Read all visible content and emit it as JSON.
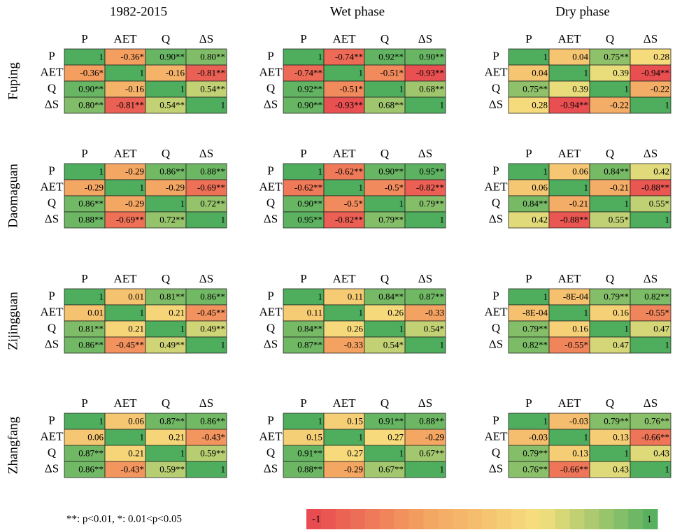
{
  "columns": [
    "1982-2015",
    "Wet phase",
    "Dry phase"
  ],
  "stations": [
    "Fuping",
    "Daomaguan",
    "Zijingguan",
    "Zhangfang"
  ],
  "variables": [
    "P",
    "AET",
    "Q",
    "ΔS"
  ],
  "panels": [
    [
      [
        [
          1,
          {
            "value": -0.36,
            "label": "-0.36*"
          },
          {
            "value": 0.9,
            "label": "0.90**"
          },
          {
            "value": 0.8,
            "label": "0.80**"
          }
        ],
        [
          {
            "value": -0.36,
            "label": "-0.36*"
          },
          1,
          -0.16,
          {
            "value": -0.81,
            "label": "-0.81**"
          }
        ],
        [
          {
            "value": 0.9,
            "label": "0.90**"
          },
          -0.16,
          1,
          {
            "value": 0.54,
            "label": "0.54**"
          }
        ],
        [
          {
            "value": 0.8,
            "label": "0.80**"
          },
          {
            "value": -0.81,
            "label": "-0.81**"
          },
          {
            "value": 0.54,
            "label": "0.54**"
          },
          1
        ]
      ],
      [
        [
          1,
          {
            "value": -0.74,
            "label": "-0.74**"
          },
          {
            "value": 0.92,
            "label": "0.92**"
          },
          {
            "value": 0.9,
            "label": "0.90**"
          }
        ],
        [
          {
            "value": -0.74,
            "label": "-0.74**"
          },
          1,
          {
            "value": -0.51,
            "label": "-0.51*"
          },
          {
            "value": -0.93,
            "label": "-0.93**"
          }
        ],
        [
          {
            "value": 0.92,
            "label": "0.92**"
          },
          {
            "value": -0.51,
            "label": "-0.51*"
          },
          1,
          {
            "value": 0.68,
            "label": "0.68**"
          }
        ],
        [
          {
            "value": 0.9,
            "label": "0.90**"
          },
          {
            "value": -0.93,
            "label": "-0.93**"
          },
          {
            "value": 0.68,
            "label": "0.68**"
          },
          1
        ]
      ],
      [
        [
          1,
          0.04,
          {
            "value": 0.75,
            "label": "0.75**"
          },
          0.28
        ],
        [
          0.04,
          1,
          0.39,
          {
            "value": -0.94,
            "label": "-0.94**"
          }
        ],
        [
          {
            "value": 0.75,
            "label": "0.75**"
          },
          0.39,
          1,
          -0.22
        ],
        [
          0.28,
          {
            "value": -0.94,
            "label": "-0.94**"
          },
          -0.22,
          1
        ]
      ]
    ],
    [
      [
        [
          1,
          -0.29,
          {
            "value": 0.86,
            "label": "0.86**"
          },
          {
            "value": 0.88,
            "label": "0.88**"
          }
        ],
        [
          -0.29,
          1,
          -0.29,
          {
            "value": -0.69,
            "label": "-0.69**"
          }
        ],
        [
          {
            "value": 0.86,
            "label": "0.86**"
          },
          -0.29,
          1,
          {
            "value": 0.72,
            "label": "0.72**"
          }
        ],
        [
          {
            "value": 0.88,
            "label": "0.88**"
          },
          {
            "value": -0.69,
            "label": "-0.69**"
          },
          {
            "value": 0.72,
            "label": "0.72**"
          },
          1
        ]
      ],
      [
        [
          1,
          {
            "value": -0.62,
            "label": "-0.62**"
          },
          {
            "value": 0.9,
            "label": "0.90**"
          },
          {
            "value": 0.95,
            "label": "0.95**"
          }
        ],
        [
          {
            "value": -0.62,
            "label": "-0.62**"
          },
          1,
          {
            "value": -0.5,
            "label": "-0.5*"
          },
          {
            "value": -0.82,
            "label": "-0.82**"
          }
        ],
        [
          {
            "value": 0.9,
            "label": "0.90**"
          },
          {
            "value": -0.5,
            "label": "-0.5*"
          },
          1,
          {
            "value": 0.79,
            "label": "0.79**"
          }
        ],
        [
          {
            "value": 0.95,
            "label": "0.95**"
          },
          {
            "value": -0.82,
            "label": "-0.82**"
          },
          {
            "value": 0.79,
            "label": "0.79**"
          },
          1
        ]
      ],
      [
        [
          1,
          0.06,
          {
            "value": 0.84,
            "label": "0.84**"
          },
          0.42
        ],
        [
          0.06,
          1,
          -0.21,
          {
            "value": -0.88,
            "label": "-0.88**"
          }
        ],
        [
          {
            "value": 0.84,
            "label": "0.84**"
          },
          -0.21,
          1,
          {
            "value": 0.55,
            "label": "0.55*"
          }
        ],
        [
          0.42,
          {
            "value": -0.88,
            "label": "-0.88**"
          },
          {
            "value": 0.55,
            "label": "0.55*"
          },
          1
        ]
      ]
    ],
    [
      [
        [
          1,
          0.01,
          {
            "value": 0.81,
            "label": "0.81**"
          },
          {
            "value": 0.86,
            "label": "0.86**"
          }
        ],
        [
          0.01,
          1,
          0.21,
          {
            "value": -0.45,
            "label": "-0.45**"
          }
        ],
        [
          {
            "value": 0.81,
            "label": "0.81**"
          },
          0.21,
          1,
          {
            "value": 0.49,
            "label": "0.49**"
          }
        ],
        [
          {
            "value": 0.86,
            "label": "0.86**"
          },
          {
            "value": -0.45,
            "label": "-0.45**"
          },
          {
            "value": 0.49,
            "label": "0.49**"
          },
          1
        ]
      ],
      [
        [
          1,
          0.11,
          {
            "value": 0.84,
            "label": "0.84**"
          },
          {
            "value": 0.87,
            "label": "0.87**"
          }
        ],
        [
          0.11,
          1,
          0.26,
          -0.33
        ],
        [
          {
            "value": 0.84,
            "label": "0.84**"
          },
          0.26,
          1,
          {
            "value": 0.54,
            "label": "0.54*"
          }
        ],
        [
          {
            "value": 0.87,
            "label": "0.87**"
          },
          -0.33,
          {
            "value": 0.54,
            "label": "0.54*"
          },
          1
        ]
      ],
      [
        [
          1,
          {
            "value": -0.0008,
            "label": "-8E-04"
          },
          {
            "value": 0.79,
            "label": "0.79**"
          },
          {
            "value": 0.82,
            "label": "0.82**"
          }
        ],
        [
          {
            "value": -0.0008,
            "label": "-8E-04"
          },
          1,
          0.16,
          {
            "value": -0.55,
            "label": "-0.55*"
          }
        ],
        [
          {
            "value": 0.79,
            "label": "0.79**"
          },
          0.16,
          1,
          0.47
        ],
        [
          {
            "value": 0.82,
            "label": "0.82**"
          },
          {
            "value": -0.55,
            "label": "-0.55*"
          },
          0.47,
          1
        ]
      ]
    ],
    [
      [
        [
          1,
          0.06,
          {
            "value": 0.87,
            "label": "0.87**"
          },
          {
            "value": 0.86,
            "label": "0.86**"
          }
        ],
        [
          0.06,
          1,
          0.21,
          {
            "value": -0.43,
            "label": "-0.43*"
          }
        ],
        [
          {
            "value": 0.87,
            "label": "0.87**"
          },
          0.21,
          1,
          {
            "value": 0.59,
            "label": "0.59**"
          }
        ],
        [
          {
            "value": 0.86,
            "label": "0.86**"
          },
          {
            "value": -0.43,
            "label": "-0.43*"
          },
          {
            "value": 0.59,
            "label": "0.59**"
          },
          1
        ]
      ],
      [
        [
          1,
          0.15,
          {
            "value": 0.91,
            "label": "0.91**"
          },
          {
            "value": 0.88,
            "label": "0.88**"
          }
        ],
        [
          0.15,
          1,
          0.27,
          -0.29
        ],
        [
          {
            "value": 0.91,
            "label": "0.91**"
          },
          0.27,
          1,
          {
            "value": 0.67,
            "label": "0.67**"
          }
        ],
        [
          {
            "value": 0.88,
            "label": "0.88**"
          },
          -0.29,
          {
            "value": 0.67,
            "label": "0.67**"
          },
          1
        ]
      ],
      [
        [
          1,
          -0.03,
          {
            "value": 0.79,
            "label": "0.79**"
          },
          {
            "value": 0.76,
            "label": "0.76**"
          }
        ],
        [
          -0.03,
          1,
          0.13,
          {
            "value": -0.66,
            "label": "-0.66**"
          }
        ],
        [
          {
            "value": 0.79,
            "label": "0.79**"
          },
          0.13,
          1,
          0.43
        ],
        [
          {
            "value": 0.76,
            "label": "0.76**"
          },
          {
            "value": -0.66,
            "label": "-0.66**"
          },
          0.43,
          1
        ]
      ]
    ]
  ],
  "note": "**: p<0.01, *: 0.01<p<0.05",
  "colorbar": {
    "ticks": [
      -1,
      1
    ],
    "colors": [
      "#e8464f",
      "#f4a261",
      "#f6e07e",
      "#4fae5e"
    ]
  }
}
